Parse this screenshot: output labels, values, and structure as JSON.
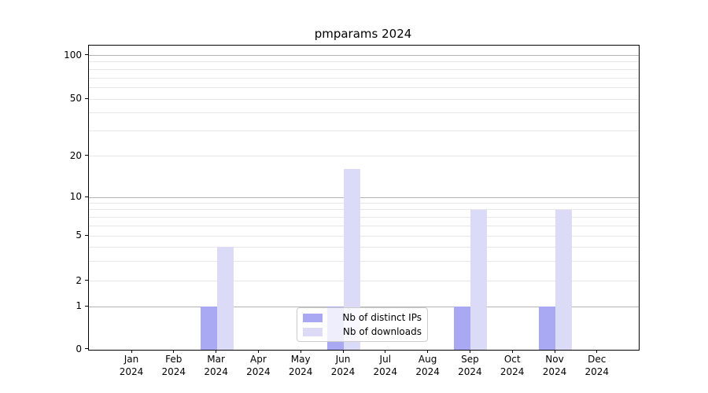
{
  "title": "pmparams 2024",
  "chart_data": {
    "type": "bar",
    "title": "pmparams 2024",
    "xlabel": "",
    "ylabel": "",
    "x_tick_labels": [
      {
        "month": "Jan",
        "year": "2024"
      },
      {
        "month": "Feb",
        "year": "2024"
      },
      {
        "month": "Mar",
        "year": "2024"
      },
      {
        "month": "Apr",
        "year": "2024"
      },
      {
        "month": "May",
        "year": "2024"
      },
      {
        "month": "Jun",
        "year": "2024"
      },
      {
        "month": "Jul",
        "year": "2024"
      },
      {
        "month": "Aug",
        "year": "2024"
      },
      {
        "month": "Sep",
        "year": "2024"
      },
      {
        "month": "Oct",
        "year": "2024"
      },
      {
        "month": "Nov",
        "year": "2024"
      },
      {
        "month": "Dec",
        "year": "2024"
      }
    ],
    "series": [
      {
        "name": "Nb of distinct IPs",
        "color": "#a8a8f3",
        "values": [
          0,
          0,
          1,
          0,
          0,
          1,
          0,
          0,
          1,
          0,
          1,
          0
        ]
      },
      {
        "name": "Nb of downloads",
        "color": "#dbdbf8",
        "values": [
          0,
          0,
          4,
          0,
          0,
          16,
          0,
          0,
          8,
          0,
          8,
          0
        ]
      }
    ],
    "y_axis": {
      "scale": "symlog",
      "tick_values": [
        0,
        1,
        2,
        5,
        10,
        20,
        50,
        100
      ],
      "tick_labels": [
        "0",
        "1",
        "2",
        "5",
        "10",
        "20",
        "50",
        "100"
      ],
      "major_gridline_values": [
        1,
        10,
        100
      ],
      "minor_gridline_values": [
        2,
        3,
        4,
        5,
        6,
        7,
        8,
        9,
        20,
        30,
        40,
        50,
        60,
        70,
        80,
        90
      ],
      "ylim": [
        0,
        115
      ]
    },
    "legend": {
      "position": "lower center",
      "items": [
        "Nb of distinct IPs",
        "Nb of downloads"
      ]
    },
    "grid": true
  },
  "colors": {
    "distinct_ips_bar": "#a8a8f3",
    "downloads_bar": "#dbdbf8",
    "grid_major": "#b3b3b3",
    "grid_minor": "#e7e7e7",
    "spine": "#000000",
    "legend_border": "#cccccc",
    "text": "#000000"
  }
}
